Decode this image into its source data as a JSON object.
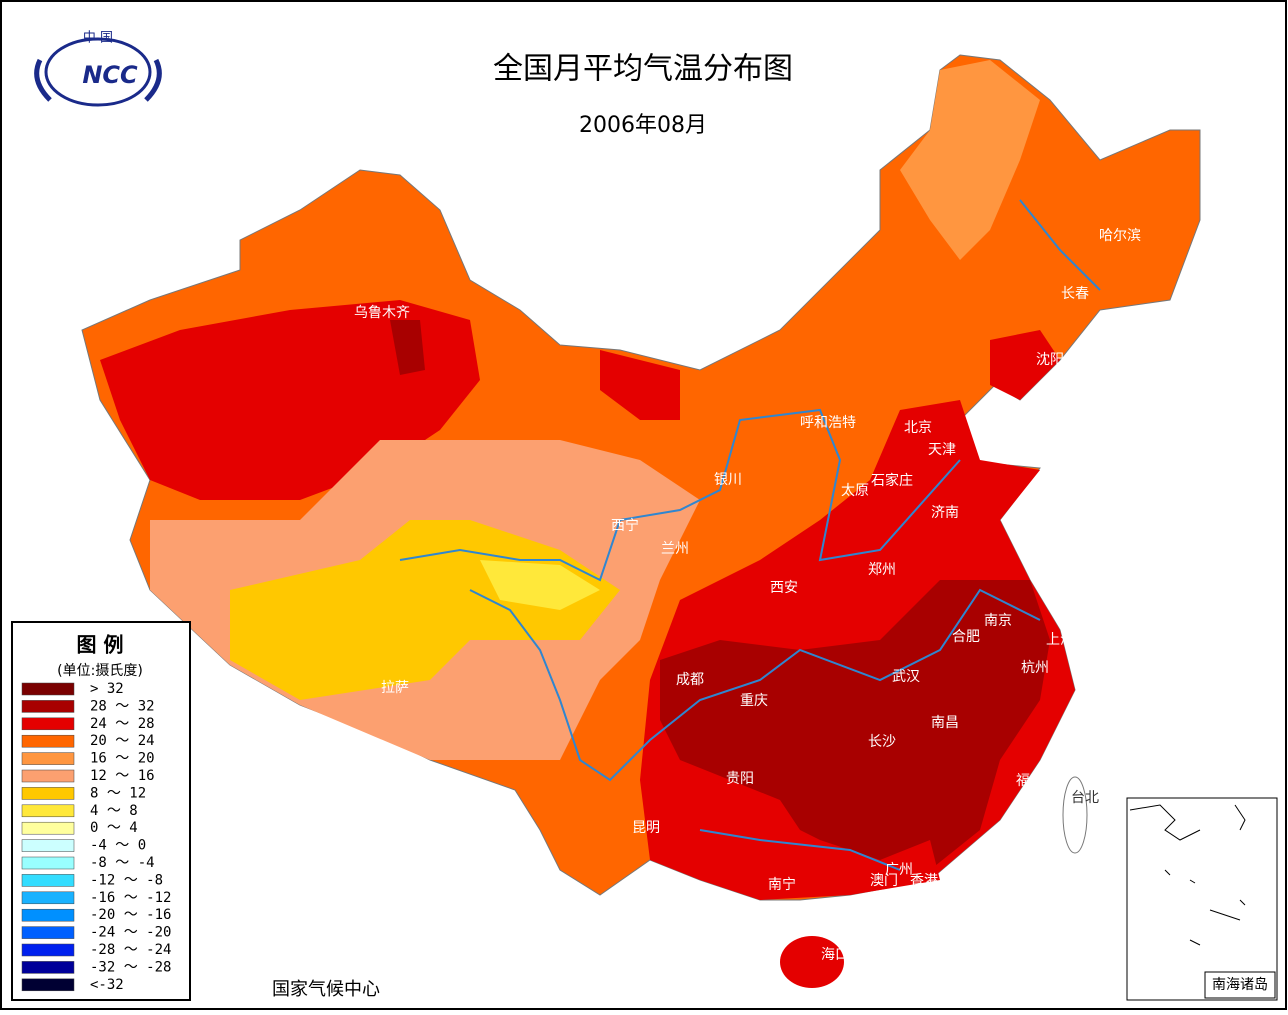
{
  "header": {
    "logo_top": "中 国",
    "logo_text": "NCC",
    "title": "全国月平均气温分布图",
    "subtitle": "2006年08月"
  },
  "legend": {
    "title": "图 例",
    "unit": "(单位:摄氏度)",
    "items": [
      {
        "label": "> 32",
        "color": "#7a0000"
      },
      {
        "label": "28 ～ 32",
        "color": "#a80000"
      },
      {
        "label": "24 ～ 28",
        "color": "#e40000"
      },
      {
        "label": "20 ～ 24",
        "color": "#ff6600"
      },
      {
        "label": "16 ～ 20",
        "color": "#ff9640"
      },
      {
        "label": "12 ～ 16",
        "color": "#fca070"
      },
      {
        "label": "8 ～ 12",
        "color": "#ffc800"
      },
      {
        "label": "4 ～ 8",
        "color": "#ffe83a"
      },
      {
        "label": "0 ～ 4",
        "color": "#ffff9e"
      },
      {
        "label": "-4 ～ 0",
        "color": "#ccffff"
      },
      {
        "label": "-8 ～ -4",
        "color": "#99ffff"
      },
      {
        "label": "-12 ～ -8",
        "color": "#33ddff"
      },
      {
        "label": "-16 ～ -12",
        "color": "#19b2ff"
      },
      {
        "label": "-20 ～ -16",
        "color": "#0090ff"
      },
      {
        "label": "-24 ～ -20",
        "color": "#0060ff"
      },
      {
        "label": "-28 ～ -24",
        "color": "#0020ee"
      },
      {
        "label": "-32 ～ -28",
        "color": "#000099"
      },
      {
        "label": "<-32",
        "color": "#000033"
      }
    ]
  },
  "cities": [
    "乌鲁木齐",
    "哈尔滨",
    "长春",
    "沈阳",
    "北京",
    "天津",
    "呼和浩特",
    "石家庄",
    "太原",
    "济南",
    "银川",
    "西宁",
    "兰州",
    "郑州",
    "西安",
    "南京",
    "合肥",
    "上海",
    "杭州",
    "成都",
    "重庆",
    "武汉",
    "南昌",
    "长沙",
    "贵阳",
    "福州",
    "台北",
    "昆明",
    "拉萨",
    "南宁",
    "广州",
    "澳门",
    "香港",
    "海口"
  ],
  "inset_label": "南海诸岛",
  "footer": "国家气候中心"
}
